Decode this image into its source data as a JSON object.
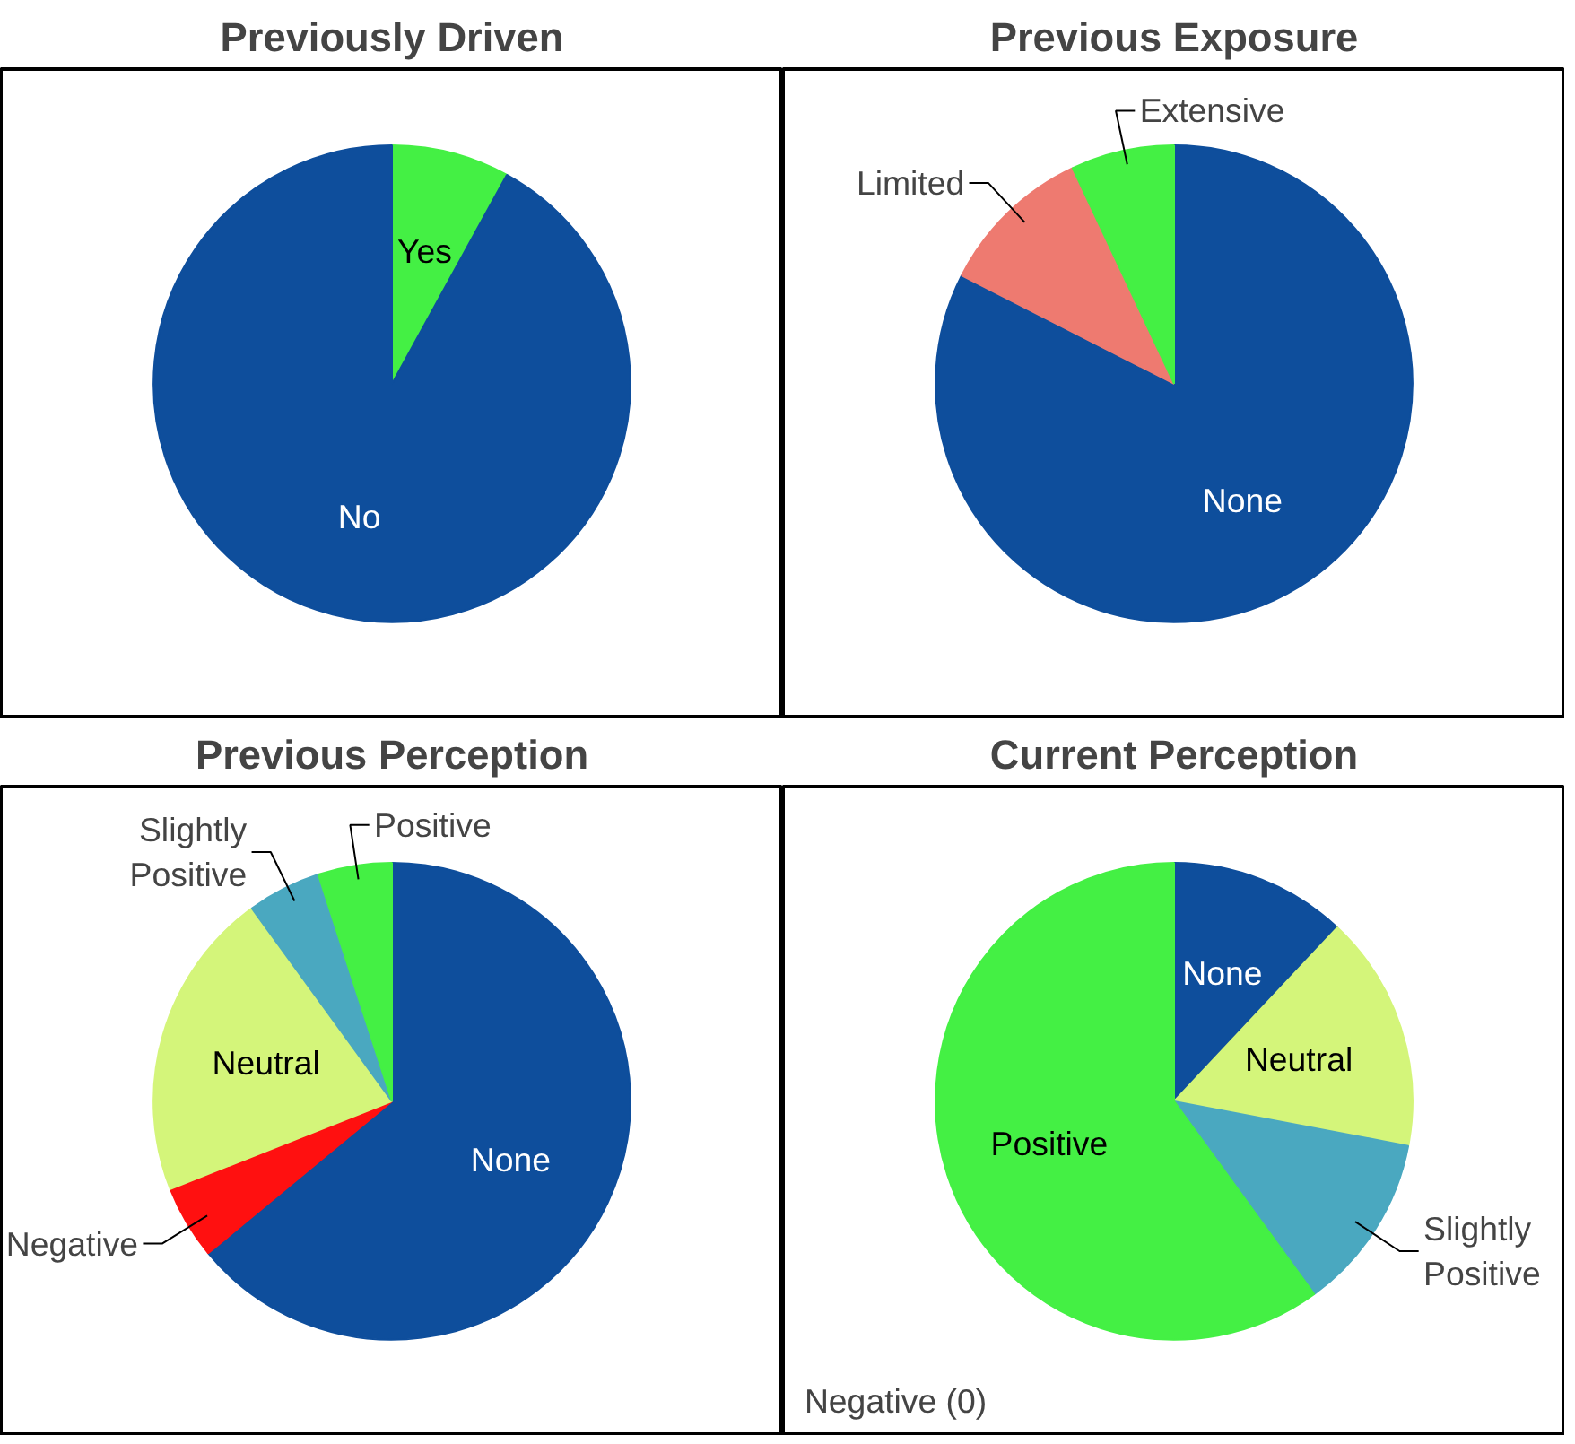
{
  "chart_data": [
    {
      "type": "pie",
      "title": "Previously Driven",
      "categories": [
        "Yes",
        "No"
      ],
      "values": [
        8,
        92
      ],
      "colors": [
        "#44f044",
        "#0e4e9c"
      ]
    },
    {
      "type": "pie",
      "title": "Previous Exposure",
      "categories": [
        "None",
        "Limited",
        "Extensive"
      ],
      "values": [
        82.5,
        10.5,
        7
      ],
      "colors": [
        "#0e4e9c",
        "#ee7a70",
        "#44f044"
      ]
    },
    {
      "type": "pie",
      "title": "Previous Perception",
      "categories": [
        "None",
        "Negative",
        "Neutral",
        "Slightly Positive",
        "Positive"
      ],
      "values": [
        64,
        5,
        21,
        5,
        5
      ],
      "colors": [
        "#0e4e9c",
        "#ff1010",
        "#d4f57a",
        "#4aa8c0",
        "#44f044"
      ]
    },
    {
      "type": "pie",
      "title": "Current Perception",
      "categories": [
        "None",
        "Neutral",
        "Slightly Positive",
        "Negative (0)",
        "Positive"
      ],
      "values": [
        12,
        16,
        12,
        0,
        60
      ],
      "colors": [
        "#0e4e9c",
        "#d4f57a",
        "#4aa8c0",
        "#ff1010",
        "#44f044"
      ]
    }
  ]
}
